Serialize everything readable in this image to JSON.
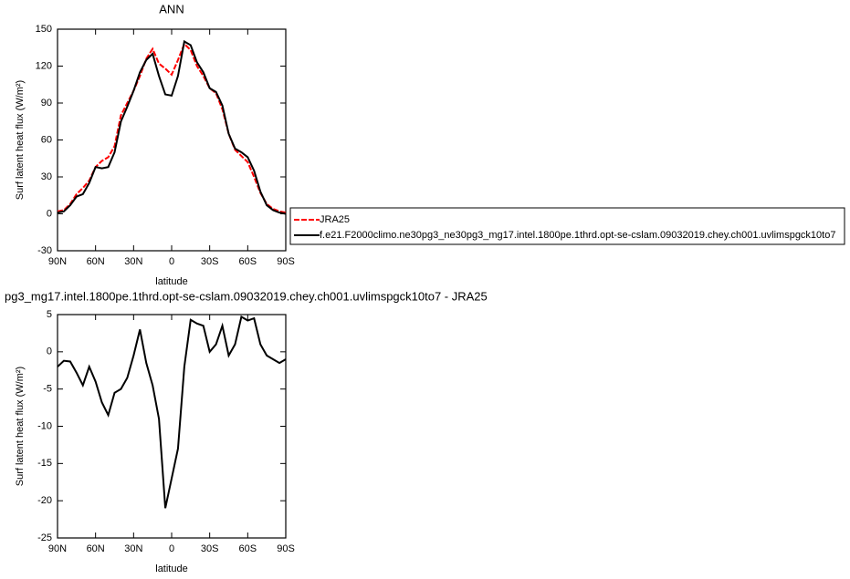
{
  "chart_data": [
    {
      "type": "line",
      "title": "ANN",
      "xlabel": "latitude",
      "ylabel": "Surf latent heat flux (W/m²)",
      "x": [
        90,
        85,
        80,
        75,
        70,
        65,
        60,
        55,
        50,
        45,
        40,
        35,
        30,
        25,
        20,
        15,
        10,
        5,
        0,
        -5,
        -10,
        -15,
        -20,
        -25,
        -30,
        -35,
        -40,
        -45,
        -50,
        -55,
        -60,
        -65,
        -70,
        -75,
        -80,
        -85,
        -90
      ],
      "xlim": [
        90,
        -90
      ],
      "xticks": [
        {
          "value": 90,
          "label": "90N"
        },
        {
          "value": 60,
          "label": "60N"
        },
        {
          "value": 30,
          "label": "30N"
        },
        0,
        {
          "value": -30,
          "label": "30S"
        },
        {
          "value": -60,
          "label": "60S"
        },
        {
          "value": -90,
          "label": "90S"
        }
      ],
      "ylim": [
        -30,
        150
      ],
      "yticks": [
        -30,
        0,
        30,
        60,
        90,
        120,
        150
      ],
      "series": [
        {
          "name": "JRA25",
          "color": "#ff0000",
          "dashed": true,
          "values": [
            2,
            3,
            8,
            16,
            21,
            27,
            38,
            43,
            46,
            55,
            80,
            90,
            100,
            112,
            126,
            134,
            122,
            118,
            113,
            125,
            138,
            133,
            120,
            112,
            102,
            98,
            85,
            65,
            52,
            47,
            42,
            30,
            17,
            8,
            4,
            2,
            1
          ]
        },
        {
          "name": "f.e21.F2000climo.ne30pg3_ne30pg3_mg17.intel.1800pe.1thrd.opt-se-cslam.09032019.chey.ch001.uvlimspgck10to7",
          "color": "#000000",
          "values": [
            1,
            2,
            7,
            14,
            16,
            25,
            38,
            37,
            38,
            50,
            75,
            87,
            100,
            115,
            125,
            130,
            112,
            97,
            96,
            112,
            140,
            137,
            123,
            115,
            102,
            99,
            88,
            65,
            53,
            50,
            46,
            35,
            18,
            7,
            3,
            1,
            0
          ]
        }
      ]
    },
    {
      "type": "line",
      "title": "pg3_mg17.intel.1800pe.1thrd.opt-se-cslam.09032019.chey.ch001.uvlimspgck10to7 - JRA25",
      "xlabel": "latitude",
      "ylabel": "Surf latent heat flux (W/m²)",
      "x": [
        90,
        85,
        80,
        75,
        70,
        65,
        60,
        55,
        50,
        45,
        40,
        35,
        30,
        25,
        20,
        15,
        10,
        5,
        0,
        -5,
        -10,
        -15,
        -20,
        -25,
        -30,
        -35,
        -40,
        -45,
        -50,
        -55,
        -60,
        -65,
        -70,
        -75,
        -80,
        -85,
        -90
      ],
      "xlim": [
        90,
        -90
      ],
      "xticks": [
        {
          "value": 90,
          "label": "90N"
        },
        {
          "value": 60,
          "label": "60N"
        },
        {
          "value": 30,
          "label": "30N"
        },
        0,
        {
          "value": -30,
          "label": "30S"
        },
        {
          "value": -60,
          "label": "60S"
        },
        {
          "value": -90,
          "label": "90S"
        }
      ],
      "ylim": [
        -25,
        5
      ],
      "yticks": [
        -25,
        -20,
        -15,
        -10,
        -5,
        0,
        5
      ],
      "series": [
        {
          "color": "#000000",
          "values": [
            -2,
            -1.2,
            -1.3,
            -2.8,
            -4.5,
            -2,
            -4,
            -6.8,
            -8.5,
            -5.5,
            -5,
            -3.5,
            -0.5,
            3,
            -1.5,
            -4.5,
            -9,
            -21,
            -17,
            -13,
            -2,
            4.3,
            3.8,
            3.5,
            0,
            1,
            3.5,
            -0.5,
            1,
            4.7,
            4.2,
            4.5,
            1,
            -0.5,
            -1,
            -1.5,
            -1
          ]
        }
      ]
    }
  ]
}
